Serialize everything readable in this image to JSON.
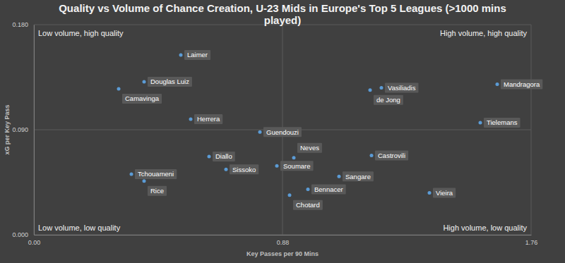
{
  "chart_data": {
    "type": "scatter",
    "title": "Quality vs Volume of Chance Creation, U-23 Mids in Europe's Top 5 Leagues (>1000 mins played)",
    "x_label": "Key Passes per 90 Mins",
    "y_label": "xG per Key Pass",
    "annotations": [
      "Low volume, high quality",
      "High volume, high quality",
      "Low volume, low quality",
      "High volume, low quality"
    ],
    "labels": [
      "Laimer",
      "Douglas Luiz",
      "Camavinga",
      "Herrera",
      "Guendouzi",
      "Diallo",
      "Sissoko",
      "Tchouameni",
      "Rice",
      "Soumare",
      "Neves",
      "Bennacer",
      "Chotard",
      "Sangare",
      "Castrovili",
      "Vieira",
      "Tielemans",
      "Mandragora",
      "Vasiliadis",
      "de Jong"
    ],
    "x": [
      0.52,
      0.39,
      0.3,
      0.555,
      0.8,
      0.62,
      0.68,
      0.345,
      0.39,
      0.86,
      0.92,
      0.97,
      0.905,
      1.08,
      1.195,
      1.4,
      1.58,
      1.64,
      1.23,
      1.19
    ],
    "values": [
      0.154,
      0.131,
      0.125,
      0.099,
      0.088,
      0.067,
      0.056,
      0.052,
      0.046,
      0.059,
      0.066,
      0.039,
      0.034,
      0.05,
      0.068,
      0.036,
      0.096,
      0.129,
      0.126,
      0.124
    ],
    "color": "#5b9bd5",
    "marker": "circle",
    "xlim": [
      0,
      1.76
    ],
    "ylim": [
      0,
      0.18
    ],
    "xticks": [
      {
        "value": 0,
        "label": "0.00"
      },
      {
        "value": 0.88,
        "label": "0.88"
      },
      {
        "value": 1.76,
        "label": "1.76"
      }
    ],
    "yticks": [
      {
        "value": 0,
        "label": "0.000"
      },
      {
        "value": 0.09,
        "label": "0.090"
      },
      {
        "value": 0.18,
        "label": "0.180"
      }
    ],
    "grid": true
  }
}
